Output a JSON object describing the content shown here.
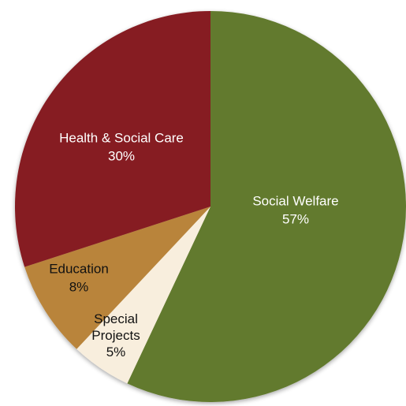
{
  "chart_data": {
    "type": "pie",
    "title": "",
    "start_angle_deg": 0,
    "direction": "clockwise",
    "slices": [
      {
        "label": "Social Welfare",
        "value": 57,
        "value_label": "57%",
        "color": "#627a2e",
        "text_color": "#ffffff"
      },
      {
        "label": "Special Projects",
        "value": 5,
        "value_label": "5%",
        "color": "#f8eedd",
        "text_color": "#111111"
      },
      {
        "label": "Education",
        "value": 8,
        "value_label": "8%",
        "color": "#b9843a",
        "text_color": "#111111"
      },
      {
        "label": "Health & Social Care",
        "value": 30,
        "value_label": "30%",
        "color": "#861c21",
        "text_color": "#ffffff"
      }
    ]
  }
}
